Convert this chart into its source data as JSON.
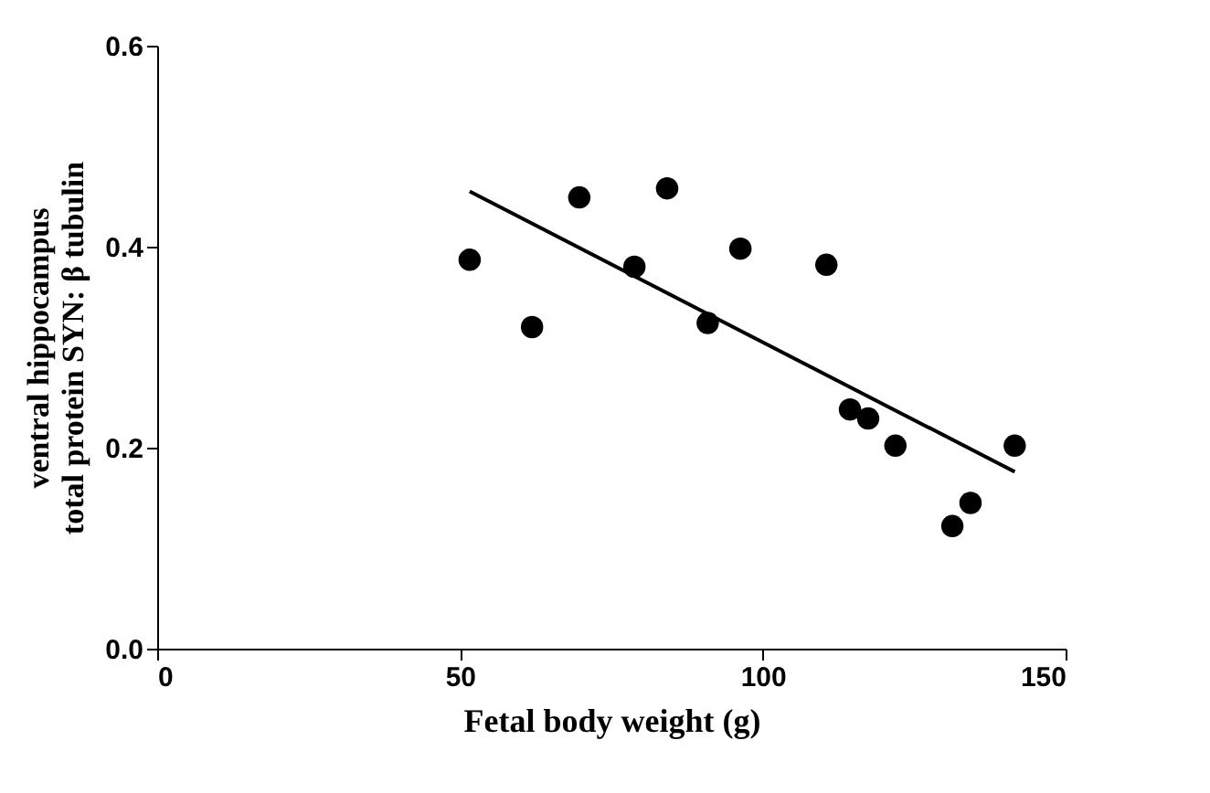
{
  "chart_data": {
    "type": "scatter",
    "xlabel": "Fetal body weight (g)",
    "ylabel": "ventral hippocampus\ntotal protein SYN: β tubulin",
    "xlim": [
      0,
      150
    ],
    "xticks": [
      0,
      50,
      100,
      150
    ],
    "ylim": [
      0,
      0.6
    ],
    "yticks": [
      {
        "value": 0,
        "label": "0.0"
      },
      0.2,
      0.4,
      0.6
    ],
    "grid": false,
    "marker": "circle",
    "series": [
      {
        "color": "#000000",
        "x": [
          51.6,
          61.9,
          69.7,
          78.8,
          84.2,
          90.9,
          96.3,
          110.5,
          114.4,
          117.4,
          121.9,
          131.3,
          134.3,
          141.6
        ],
        "values": [
          0.387,
          0.32,
          0.449,
          0.38,
          0.458,
          0.324,
          0.398,
          0.382,
          0.238,
          0.229,
          0.202,
          0.122,
          0.145,
          0.202
        ]
      },
      {
        "type": "line",
        "marker": "none",
        "color": "#000000",
        "x": [
          51.6,
          141.6
        ],
        "values": [
          0.455,
          0.176
        ]
      }
    ]
  }
}
